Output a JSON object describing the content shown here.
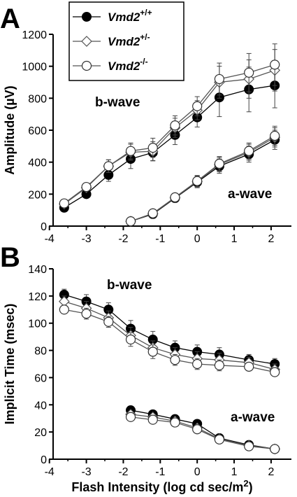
{
  "chart_data": [
    {
      "type": "line",
      "panel": "A",
      "ylabel": "Amplitude (µV)",
      "xlabel": "",
      "xlim": [
        -3.9,
        2.55
      ],
      "ylim": [
        0,
        1200
      ],
      "xticks": [
        -4,
        -3,
        -2,
        -1,
        0,
        1,
        2
      ],
      "yticks": [
        0,
        200,
        400,
        600,
        800,
        1000,
        1200
      ],
      "xtick_labels": [
        "-4",
        "-3",
        "-2",
        "-1",
        "0",
        "1",
        "2"
      ],
      "ytick_labels": [
        "0",
        "200",
        "400",
        "600",
        "800",
        "1000",
        "1200"
      ],
      "annotations": [
        "b-wave",
        "a-wave"
      ],
      "legend": {
        "placement": "top-left",
        "entries": [
          {
            "gene": "Vmd2",
            "genotype": "+/+"
          },
          {
            "gene": "Vmd2",
            "genotype": "+/-"
          },
          {
            "gene": "Vmd2",
            "genotype": "-/-"
          }
        ]
      },
      "series": [
        {
          "genotype": "+/+",
          "marker": "filled-circle",
          "wave": "b-wave",
          "x": [
            -3.6,
            -3.0,
            -2.4,
            -1.8,
            -1.2,
            -0.6,
            0.0,
            0.6,
            1.4,
            2.1
          ],
          "y": [
            115,
            200,
            320,
            420,
            460,
            570,
            680,
            805,
            855,
            880
          ],
          "err": [
            15,
            20,
            40,
            60,
            50,
            60,
            60,
            120,
            140,
            140
          ]
        },
        {
          "genotype": "+/-",
          "marker": "open-diamond",
          "wave": "b-wave",
          "x": [
            -3.6,
            -3.0,
            -2.4,
            -1.8,
            -1.2,
            -0.6,
            0.0,
            0.6,
            1.4,
            2.1
          ],
          "y": [
            138,
            240,
            375,
            462,
            468,
            615,
            725,
            900,
            920,
            975
          ],
          "err": [
            15,
            20,
            40,
            50,
            60,
            60,
            60,
            100,
            120,
            130
          ]
        },
        {
          "genotype": "-/-",
          "marker": "open-circle",
          "wave": "b-wave",
          "x": [
            -3.6,
            -3.0,
            -2.4,
            -1.8,
            -1.2,
            -0.6,
            0.0,
            0.6,
            1.4,
            2.1
          ],
          "y": [
            142,
            245,
            375,
            470,
            490,
            630,
            750,
            920,
            960,
            1010
          ],
          "err": [
            15,
            20,
            40,
            50,
            60,
            60,
            60,
            100,
            120,
            130
          ]
        },
        {
          "genotype": "+/+",
          "marker": "filled-circle",
          "wave": "a-wave",
          "x": [
            -1.8,
            -1.2,
            -0.6,
            0.0,
            0.6,
            1.4,
            2.1
          ],
          "y": [
            30,
            75,
            175,
            275,
            375,
            450,
            540
          ],
          "err": [
            10,
            15,
            25,
            35,
            45,
            50,
            60
          ]
        },
        {
          "genotype": "+/-",
          "marker": "open-diamond",
          "wave": "a-wave",
          "x": [
            -1.8,
            -1.2,
            -0.6,
            0.0,
            0.6,
            1.4,
            2.1
          ],
          "y": [
            30,
            78,
            178,
            280,
            385,
            462,
            555
          ],
          "err": [
            10,
            15,
            25,
            35,
            45,
            50,
            60
          ]
        },
        {
          "genotype": "-/-",
          "marker": "open-circle",
          "wave": "a-wave",
          "x": [
            -1.8,
            -1.2,
            -0.6,
            0.0,
            0.6,
            1.4,
            2.1
          ],
          "y": [
            30,
            80,
            180,
            282,
            390,
            470,
            565
          ],
          "err": [
            10,
            15,
            25,
            35,
            45,
            50,
            60
          ]
        }
      ]
    },
    {
      "type": "line",
      "panel": "B",
      "ylabel": "Implicit Time (msec)",
      "xlabel": "Flash Intensity (log cd sec/m",
      "xlabel_sup": "2",
      "xlabel_end": ")",
      "xlim": [
        -3.9,
        2.55
      ],
      "ylim": [
        0,
        140
      ],
      "xticks": [
        -4,
        -3,
        -2,
        -1,
        0,
        1,
        2
      ],
      "yticks": [
        0,
        20,
        40,
        60,
        80,
        100,
        120,
        140
      ],
      "xtick_labels": [
        "-4",
        "-3",
        "-2",
        "-1",
        "0",
        "1",
        "2"
      ],
      "ytick_labels": [
        "0",
        "20",
        "40",
        "60",
        "80",
        "100",
        "120",
        "140"
      ],
      "annotations": [
        "b-wave",
        "a-wave"
      ],
      "series": [
        {
          "genotype": "+/+",
          "marker": "filled-circle",
          "wave": "b-wave",
          "x": [
            -3.6,
            -3.0,
            -2.4,
            -1.8,
            -1.2,
            -0.6,
            0.0,
            0.6,
            1.4,
            2.1
          ],
          "y": [
            121,
            116,
            110,
            96,
            88,
            82,
            79,
            77,
            73,
            70
          ],
          "err": [
            4,
            5,
            5,
            6,
            6,
            5,
            5,
            5,
            4,
            4
          ]
        },
        {
          "genotype": "+/-",
          "marker": "open-diamond",
          "wave": "b-wave",
          "x": [
            -3.6,
            -3.0,
            -2.4,
            -1.8,
            -1.2,
            -0.6,
            0.0,
            0.6,
            1.4,
            2.1
          ],
          "y": [
            116,
            111,
            104,
            91,
            82,
            77,
            74,
            73,
            71,
            66
          ],
          "err": [
            4,
            5,
            5,
            6,
            5,
            5,
            5,
            5,
            4,
            4
          ]
        },
        {
          "genotype": "-/-",
          "marker": "open-circle",
          "wave": "b-wave",
          "x": [
            -3.6,
            -3.0,
            -2.4,
            -1.8,
            -1.2,
            -0.6,
            0.0,
            0.6,
            1.4,
            2.1
          ],
          "y": [
            110,
            107,
            101,
            88,
            79,
            73,
            70,
            69,
            68,
            64
          ],
          "err": [
            3,
            4,
            4,
            5,
            5,
            4,
            4,
            4,
            3,
            3
          ]
        },
        {
          "genotype": "+/+",
          "marker": "filled-circle",
          "wave": "a-wave",
          "x": [
            -1.8,
            -1.2,
            -0.6,
            0.0,
            0.6,
            1.4,
            2.1
          ],
          "y": [
            36,
            33,
            29.5,
            26,
            15.5,
            10.5,
            7.5
          ],
          "err": [
            2,
            2,
            2,
            2,
            2,
            1.5,
            1
          ]
        },
        {
          "genotype": "+/-",
          "marker": "open-diamond",
          "wave": "a-wave",
          "x": [
            -1.8,
            -1.2,
            -0.6,
            0.0,
            0.6,
            1.4,
            2.1
          ],
          "y": [
            33,
            31,
            28,
            23,
            15,
            10,
            7.5
          ],
          "err": [
            2,
            2,
            2,
            2,
            2,
            1.5,
            1
          ]
        },
        {
          "genotype": "-/-",
          "marker": "open-circle",
          "wave": "a-wave",
          "x": [
            -1.8,
            -1.2,
            -0.6,
            0.0,
            0.6,
            1.4,
            2.1
          ],
          "y": [
            31,
            29,
            27,
            22,
            14.5,
            9.5,
            7.5
          ],
          "err": [
            2,
            2,
            2,
            2,
            2,
            1.5,
            1
          ]
        }
      ]
    }
  ]
}
